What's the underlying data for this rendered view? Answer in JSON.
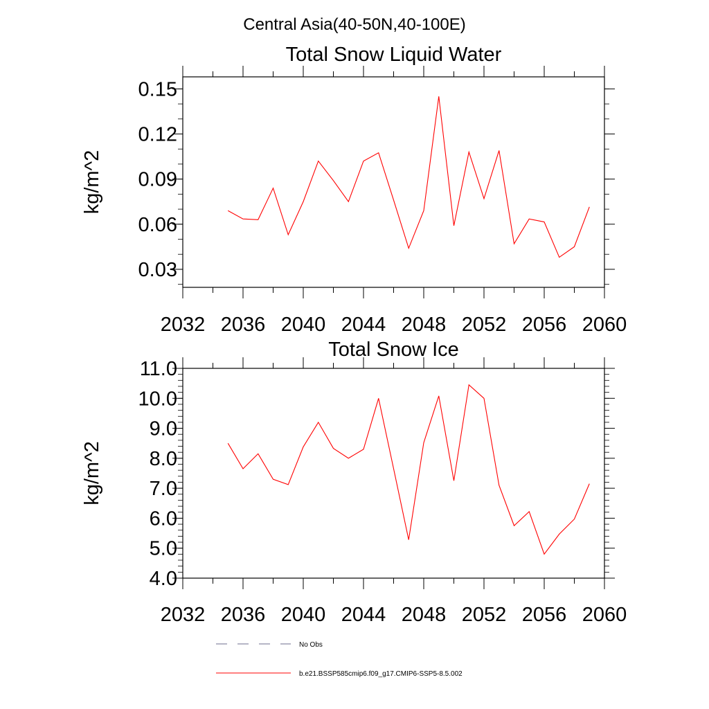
{
  "page_title": "Central Asia(40-50N,40-100E)",
  "chart_data": [
    {
      "type": "line",
      "title": "Total Snow Liquid Water",
      "xlabel": "",
      "ylabel": "kg/m^2",
      "xlim": [
        2032,
        2060
      ],
      "ylim": [
        0.018,
        0.158
      ],
      "xticks": [
        "2032",
        "2036",
        "2040",
        "2044",
        "2048",
        "2052",
        "2056",
        "2060"
      ],
      "yticks": [
        "0.03",
        "0.06",
        "0.09",
        "0.12",
        "0.15"
      ],
      "series": [
        {
          "name": "b.e21.BSSP585cmip6.f09_g17.CMIP6-SSP5-8.5.002",
          "color": "#ff0000",
          "x": [
            2035,
            2036,
            2037,
            2038,
            2039,
            2040,
            2041,
            2042,
            2043,
            2044,
            2045,
            2046,
            2047,
            2048,
            2049,
            2050,
            2051,
            2052,
            2053,
            2054,
            2055,
            2056,
            2057,
            2058,
            2059
          ],
          "y": [
            0.069,
            0.0635,
            0.063,
            0.084,
            0.053,
            0.075,
            0.102,
            0.089,
            0.075,
            0.102,
            0.1075,
            0.076,
            0.044,
            0.069,
            0.145,
            0.059,
            0.108,
            0.077,
            0.109,
            0.047,
            0.0635,
            0.0615,
            0.038,
            0.045,
            0.0715
          ]
        }
      ]
    },
    {
      "type": "line",
      "title": "Total Snow Ice",
      "xlabel": "",
      "ylabel": "kg/m^2",
      "xlim": [
        2032,
        2060
      ],
      "ylim": [
        4.0,
        11.0
      ],
      "xticks": [
        "2032",
        "2036",
        "2040",
        "2044",
        "2048",
        "2052",
        "2056",
        "2060"
      ],
      "yticks": [
        "4.0",
        "5.0",
        "6.0",
        "7.0",
        "8.0",
        "9.0",
        "10.0",
        "11.0"
      ],
      "series": [
        {
          "name": "b.e21.BSSP585cmip6.f09_g17.CMIP6-SSP5-8.5.002",
          "color": "#ff0000",
          "x": [
            2035,
            2036,
            2037,
            2038,
            2039,
            2040,
            2041,
            2042,
            2043,
            2044,
            2045,
            2046,
            2047,
            2048,
            2049,
            2050,
            2051,
            2052,
            2053,
            2054,
            2055,
            2056,
            2057,
            2058,
            2059
          ],
          "y": [
            8.5,
            7.65,
            8.15,
            7.3,
            7.12,
            8.38,
            9.2,
            8.33,
            8.0,
            8.3,
            10.0,
            7.65,
            5.28,
            8.52,
            10.08,
            7.25,
            10.45,
            10.0,
            7.1,
            5.75,
            6.22,
            4.8,
            5.47,
            5.97,
            7.15
          ]
        }
      ]
    }
  ],
  "legend": {
    "placement": "bottom",
    "items": [
      {
        "label": "No Obs",
        "style": "dashed",
        "color": "#6b6b8e"
      },
      {
        "label": "b.e21.BSSP585cmip6.f09_g17.CMIP6-SSP5-8.5.002",
        "style": "solid",
        "color": "#ff0000"
      }
    ]
  }
}
